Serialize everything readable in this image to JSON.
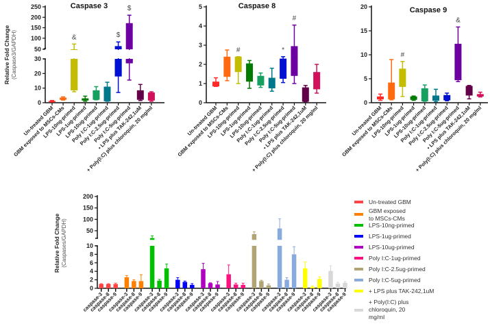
{
  "chart_data": [
    {
      "type": "box",
      "title": "Caspase 3",
      "ylabel": "Relative Fold Change",
      "ylabel_sub": "(Caspase3/GAPDH)",
      "ylim_lower": [
        0,
        30
      ],
      "ylim_upper": [
        50,
        250
      ],
      "yticks_lower": [
        0,
        10,
        20,
        30
      ],
      "yticks_upper": [
        50,
        100,
        150,
        200,
        250
      ],
      "categories": [
        "Un-treated GBM",
        "GBM exposed to MSCs-CMs",
        "LPS-10ng-primed",
        "LPS-1ug-primed",
        "LPS-10ug-primed",
        "Poly I:C-1ug-primed",
        "Poly I:C-2.5ug-primed",
        "Poly I:C-5ug-primed",
        "• LPS plus TAK-242,1uM",
        "+ Poly(I:C) plus chloroquin, 20 mg/ml"
      ],
      "colors": [
        "#ff2a2a",
        "#ff6a10",
        "#c4bc00",
        "#007a00",
        "#15a060",
        "#00788c",
        "#0010d0",
        "#6c00a0",
        "#620048",
        "#d0105a"
      ],
      "boxes": [
        {
          "min": 0.5,
          "q1": 0.5,
          "q3": 1.2,
          "max": 1.5
        },
        {
          "min": 1.8,
          "q1": 2,
          "q3": 3.5,
          "max": 4
        },
        {
          "min": 7.5,
          "q1": 8.5,
          "q3": 45,
          "max": 72
        },
        {
          "min": 1,
          "q1": 1.5,
          "q3": 3,
          "max": 4.5
        },
        {
          "min": 2,
          "q1": 2,
          "q3": 8.5,
          "max": 11
        },
        {
          "min": 1,
          "q1": 1,
          "q3": 11,
          "max": 14
        },
        {
          "min": 7,
          "q1": 18,
          "q3": 62,
          "max": 82
        },
        {
          "min": 15.5,
          "q1": 27,
          "q3": 172,
          "max": 210
        },
        {
          "min": 1.5,
          "q1": 2,
          "q3": 8.5,
          "max": 12.5
        },
        {
          "min": 1,
          "q1": 1.5,
          "q3": 7,
          "max": 7.5
        }
      ],
      "annotations": [
        "",
        "",
        "&",
        "",
        "",
        "",
        "$",
        "$",
        "",
        ""
      ]
    },
    {
      "type": "box",
      "title": "Caspase 8",
      "ylim": [
        0,
        5
      ],
      "yticks": [
        0,
        1,
        2,
        3,
        4,
        5
      ],
      "categories": [
        "Un-treated GBM",
        "GBM exposed to MSCs-CMs",
        "LPS-10ng-primed",
        "LPS-1ug-primed",
        "LPS-10ug-primed",
        "Poly I:C-1ug-primed",
        "Poly I:C-2.5ug-primed",
        "Poly I:C-5ug-primed",
        "• LPS plus TAK-242,1uM",
        "+ Poly(I:C) plus chloroquin, 20 mg/ml"
      ],
      "colors": [
        "#ff2a2a",
        "#ff6a10",
        "#c4bc00",
        "#007a00",
        "#15a060",
        "#00788c",
        "#0010d0",
        "#6c00a0",
        "#620048",
        "#d0105a"
      ],
      "boxes": [
        {
          "min": 0.85,
          "q1": 0.85,
          "q3": 1.1,
          "max": 1.3
        },
        {
          "min": 1.15,
          "q1": 1.35,
          "q3": 2.4,
          "max": 2.75
        },
        {
          "min": 1,
          "q1": 1.6,
          "q3": 2.4,
          "max": 2.4
        },
        {
          "min": 0.75,
          "q1": 1.1,
          "q3": 2.05,
          "max": 2.2
        },
        {
          "min": 0.8,
          "q1": 0.9,
          "q3": 1.4,
          "max": 1.55
        },
        {
          "min": 0.6,
          "q1": 0.75,
          "q3": 1.3,
          "max": 1.8
        },
        {
          "min": 1.05,
          "q1": 1.25,
          "q3": 2.3,
          "max": 2.4
        },
        {
          "min": 1,
          "q1": 1.4,
          "q3": 2.95,
          "max": 4.05
        },
        {
          "min": 0.05,
          "q1": 0.05,
          "q3": 0.8,
          "max": 0.9
        },
        {
          "min": 0.5,
          "q1": 0.7,
          "q3": 1.6,
          "max": 2.0
        }
      ],
      "annotations": [
        "",
        "",
        "#",
        "",
        "",
        "",
        "*",
        "#",
        "",
        ""
      ]
    },
    {
      "type": "box",
      "title": "Caspase 9",
      "ylim": [
        0,
        20
      ],
      "yticks": [
        0,
        5,
        10,
        15,
        20
      ],
      "categories": [
        "Un-treated GBM",
        "GBM exposed to MSCs-CMs",
        "LPS-10ng-primed",
        "LPS-1ug-primed",
        "LPS-10ug-primed",
        "Poly I:C-1ug-primed",
        "Poly I:C-2.5ug-primed",
        "Poly I:C-5ug-primed",
        "• LPS plus TAK-242,1uM",
        "+ Poly(I:C) plus chloroquin, 20 mg/ml"
      ],
      "colors": [
        "#ff2a2a",
        "#ff6a10",
        "#c4bc00",
        "#007a00",
        "#15a060",
        "#00788c",
        "#0010d0",
        "#6c00a0",
        "#620048",
        "#d0105a"
      ],
      "boxes": [
        {
          "min": 0.5,
          "q1": 0.7,
          "q3": 1.3,
          "max": 1.8
        },
        {
          "min": 0.6,
          "q1": 0.7,
          "q3": 4.2,
          "max": 9
        },
        {
          "min": 1.3,
          "q1": 3.3,
          "q3": 7.1,
          "max": 8.6
        },
        {
          "min": 0.5,
          "q1": 0.6,
          "q3": 1.3,
          "max": 1.4
        },
        {
          "min": 0.3,
          "q1": 0.3,
          "q3": 3,
          "max": 3.7
        },
        {
          "min": 0.2,
          "q1": 0.4,
          "q3": 1.5,
          "max": 2.8
        },
        {
          "min": 0.4,
          "q1": 0.5,
          "q3": 1.6,
          "max": 2.0
        },
        {
          "min": 4.4,
          "q1": 4.7,
          "q3": 12.3,
          "max": 15.8
        },
        {
          "min": 0.8,
          "q1": 1.5,
          "q3": 3.5,
          "max": 3.6
        },
        {
          "min": 1.2,
          "q1": 1.3,
          "q3": 1.8,
          "max": 2.2
        }
      ],
      "annotations": [
        "",
        "",
        "#",
        "",
        "",
        "",
        "",
        "&",
        "",
        ""
      ]
    },
    {
      "type": "bar",
      "ylabel": "Relative Fold Change",
      "ylabel_sub": "(Caspases/GAPDH)",
      "ylim_lower": [
        0,
        10
      ],
      "ylim_upper": [
        10,
        200
      ],
      "yticks_lower": [
        0,
        2,
        4,
        6,
        8,
        10
      ],
      "yticks_upper": [
        50,
        100,
        150,
        200
      ],
      "categories": [
        "caspase-3",
        "caspase-8",
        "caspase-9"
      ],
      "series": [
        {
          "name": "Un-treated GBM",
          "color": "#ff4444",
          "values": [
            1,
            1,
            1
          ],
          "errors": [
            1.1,
            1.1,
            1.2
          ]
        },
        {
          "name": "GBM exposed to MSCs-CMs",
          "color": "#ff7f00",
          "values": [
            2.6,
            1.7,
            1.7
          ],
          "errors": [
            3,
            2,
            3.2
          ]
        },
        {
          "name": "LPS-10ng-primed",
          "color": "#00c000",
          "values": [
            18,
            1.8,
            4.7
          ],
          "errors": [
            28,
            2.1,
            5.7
          ]
        },
        {
          "name": "LPS-1ug-primed",
          "color": "#0000ff",
          "values": [
            2,
            1.5,
            0.8
          ],
          "errors": [
            2.5,
            1.7,
            1.1
          ]
        },
        {
          "name": "LPS-10ug-primed",
          "color": "#b000c0",
          "values": [
            4.5,
            1.2,
            0.9
          ],
          "errors": [
            5.9,
            1.3,
            1.6
          ]
        },
        {
          "name": "Poly I:C-1ug-primed",
          "color": "#ff1080",
          "values": [
            3.3,
            0.9,
            0.8
          ],
          "errors": [
            5.5,
            1.2,
            1.2
          ]
        },
        {
          "name": "Poly I:C-2.5ug-primed",
          "color": "#b0a474",
          "values": [
            35,
            1.7,
            0.7
          ],
          "errors": [
            45,
            1.9,
            1.0
          ]
        },
        {
          "name": "Poly I:C-5ug-primed",
          "color": "#88aadd",
          "values": [
            60,
            2,
            8
          ],
          "errors": [
            102,
            2.5,
            9.8
          ]
        },
        {
          "name": "+ LPS plus TAK-242,1uM",
          "color": "#ffff00",
          "values": [
            4.7,
            0.3,
            2.2
          ],
          "errors": [
            6.2,
            0.5,
            2.7
          ]
        },
        {
          "name": "+ Poly(I:C) plus chloroquin, 20 mg/ml",
          "color": "#d8d8d8",
          "values": [
            4.1,
            1.1,
            1.3
          ],
          "errors": [
            5.3,
            1.4,
            1.6
          ]
        }
      ],
      "legend_labels": [
        [
          "Un-treated GBM"
        ],
        [
          "GBM exposed",
          "to MSCs-CMs"
        ],
        [
          "LPS-10ng-primed"
        ],
        [
          "LPS-1ug-primed"
        ],
        [
          "LPS-10ug-primed"
        ],
        [
          "Poly I:C-1ug-primed"
        ],
        [
          "Poly I:C-2.5ug-primed"
        ],
        [
          "Poly I:C-5ug-primed"
        ],
        [
          "+ LPS plus TAK-242,1uM"
        ],
        [
          "+ Poly(I:C) plus",
          "chloroquin, 20",
          "mg/ml"
        ]
      ],
      "legend_position": "right"
    }
  ]
}
